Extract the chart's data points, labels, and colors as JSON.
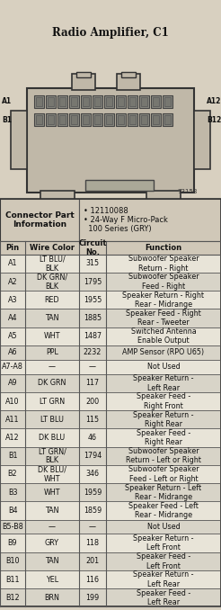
{
  "title": "Radio Amplifier, C1",
  "part_info_label": "Connector Part\nInformation",
  "part_info_bullets": [
    "• 12110088",
    "• 24-Way F Micro-Pack\n  100 Series (GRY)"
  ],
  "col_headers": [
    "Pin",
    "Wire Color",
    "Circuit\nNo.",
    "Function"
  ],
  "rows": [
    [
      "A1",
      "LT BLU/\nBLK",
      "315",
      "Subwoofer Speaker\nReturn - Right"
    ],
    [
      "A2",
      "DK GRN/\nBLK",
      "1795",
      "Subwoofer Speaker\nFeed - Right"
    ],
    [
      "A3",
      "RED",
      "1955",
      "Speaker Return - Right\nRear - Midrange"
    ],
    [
      "A4",
      "TAN",
      "1885",
      "Speaker Feed - Right\nRear - Tweeter"
    ],
    [
      "A5",
      "WHT",
      "1487",
      "Switched Antenna\nEnable Output"
    ],
    [
      "A6",
      "PPL",
      "2232",
      "AMP Sensor (RPO U65)"
    ],
    [
      "A7-A8",
      "—",
      "—",
      "Not Used"
    ],
    [
      "A9",
      "DK GRN",
      "117",
      "Speaker Return -\nLeft Rear"
    ],
    [
      "A10",
      "LT GRN",
      "200",
      "Speaker Feed -\nRight Front"
    ],
    [
      "A11",
      "LT BLU",
      "115",
      "Speaker Return -\nRight Rear"
    ],
    [
      "A12",
      "DK BLU",
      "46",
      "Speaker Feed -\nRight Rear"
    ],
    [
      "B1",
      "LT GRN/\nBLK",
      "1794",
      "Subwoofer Speaker\nReturn - Left or Right"
    ],
    [
      "B2",
      "DK BLU/\nWHT",
      "346",
      "Subwoofer Speaker\nFeed - Left or Right"
    ],
    [
      "B3",
      "WHT",
      "1959",
      "Speaker Return - Left\nRear - Midrange"
    ],
    [
      "B4",
      "TAN",
      "1859",
      "Speaker Feed - Left\nRear - Midrange"
    ],
    [
      "B5-B8",
      "—",
      "—",
      "Not Used"
    ],
    [
      "B9",
      "GRY",
      "118",
      "Speaker Return -\nLeft Front"
    ],
    [
      "B10",
      "TAN",
      "201",
      "Speaker Feed -\nLeft Front"
    ],
    [
      "B11",
      "YEL",
      "116",
      "Speaker Return -\nLeft Rear"
    ],
    [
      "B12",
      "BRN",
      "199",
      "Speaker Feed -\nLeft Rear"
    ]
  ],
  "bg_color": "#d8d0c0",
  "table_bg": "#e8e0d0",
  "header_bg": "#c8c0b0",
  "border_color": "#555555",
  "text_color": "#111111",
  "connector_bg": "#b8b0a0",
  "part_num": "73158"
}
